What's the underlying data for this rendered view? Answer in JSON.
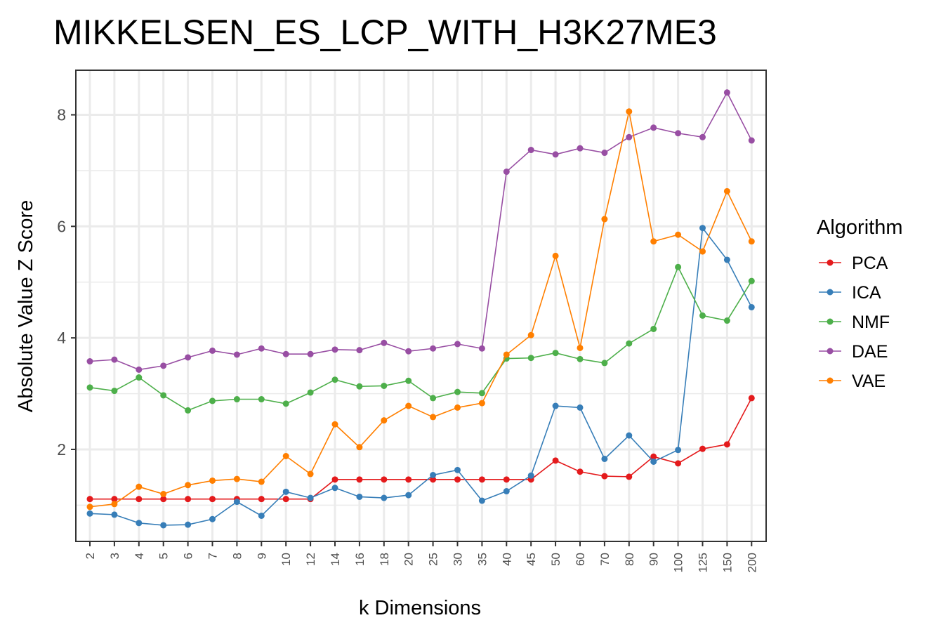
{
  "chart_data": {
    "type": "line",
    "title": "MIKKELSEN_ES_LCP_WITH_H3K27ME3",
    "xlabel": "k Dimensions",
    "ylabel": "Absolute Value Z Score",
    "categories": [
      "2",
      "3",
      "4",
      "5",
      "6",
      "7",
      "8",
      "9",
      "10",
      "12",
      "14",
      "16",
      "18",
      "20",
      "25",
      "30",
      "35",
      "40",
      "45",
      "50",
      "60",
      "70",
      "80",
      "90",
      "100",
      "125",
      "150",
      "200"
    ],
    "ylim": [
      0.35,
      8.8
    ],
    "yticks": [
      2,
      4,
      6,
      8
    ],
    "grid": true,
    "legend_title": "Algorithm",
    "legend_position": "right",
    "series": [
      {
        "name": "PCA",
        "color": "#E41A1C",
        "values": [
          1.11,
          1.11,
          1.11,
          1.11,
          1.11,
          1.11,
          1.11,
          1.11,
          1.11,
          1.11,
          1.46,
          1.46,
          1.46,
          1.46,
          1.46,
          1.46,
          1.46,
          1.46,
          1.46,
          1.8,
          1.6,
          1.52,
          1.51,
          1.87,
          1.75,
          2.01,
          2.09,
          2.92
        ]
      },
      {
        "name": "ICA",
        "color": "#377EB8",
        "values": [
          0.85,
          0.83,
          0.68,
          0.64,
          0.65,
          0.75,
          1.06,
          0.81,
          1.24,
          1.13,
          1.31,
          1.15,
          1.13,
          1.18,
          1.54,
          1.63,
          1.08,
          1.25,
          1.53,
          2.78,
          2.75,
          1.83,
          2.25,
          1.78,
          1.99,
          5.97,
          5.4,
          4.55
        ]
      },
      {
        "name": "NMF",
        "color": "#4DAF4A",
        "values": [
          3.11,
          3.05,
          3.29,
          2.97,
          2.7,
          2.87,
          2.9,
          2.9,
          2.82,
          3.02,
          3.25,
          3.13,
          3.14,
          3.23,
          2.92,
          3.03,
          3.01,
          3.63,
          3.64,
          3.73,
          3.62,
          3.55,
          3.9,
          4.16,
          5.27,
          4.4,
          4.31,
          5.02
        ]
      },
      {
        "name": "DAE",
        "color": "#984EA3",
        "values": [
          3.58,
          3.61,
          3.43,
          3.5,
          3.65,
          3.77,
          3.7,
          3.81,
          3.71,
          3.71,
          3.79,
          3.78,
          3.91,
          3.76,
          3.81,
          3.89,
          3.81,
          6.98,
          7.37,
          7.29,
          7.4,
          7.32,
          7.6,
          7.77,
          7.67,
          7.6,
          8.4,
          7.54
        ]
      },
      {
        "name": "VAE",
        "color": "#FF7F00",
        "values": [
          0.97,
          1.02,
          1.33,
          1.2,
          1.36,
          1.44,
          1.47,
          1.42,
          1.88,
          1.56,
          2.45,
          2.04,
          2.52,
          2.78,
          2.58,
          2.75,
          2.83,
          3.7,
          4.05,
          5.47,
          3.82,
          6.13,
          8.06,
          5.73,
          5.85,
          5.55,
          6.63,
          5.73
        ]
      }
    ]
  }
}
